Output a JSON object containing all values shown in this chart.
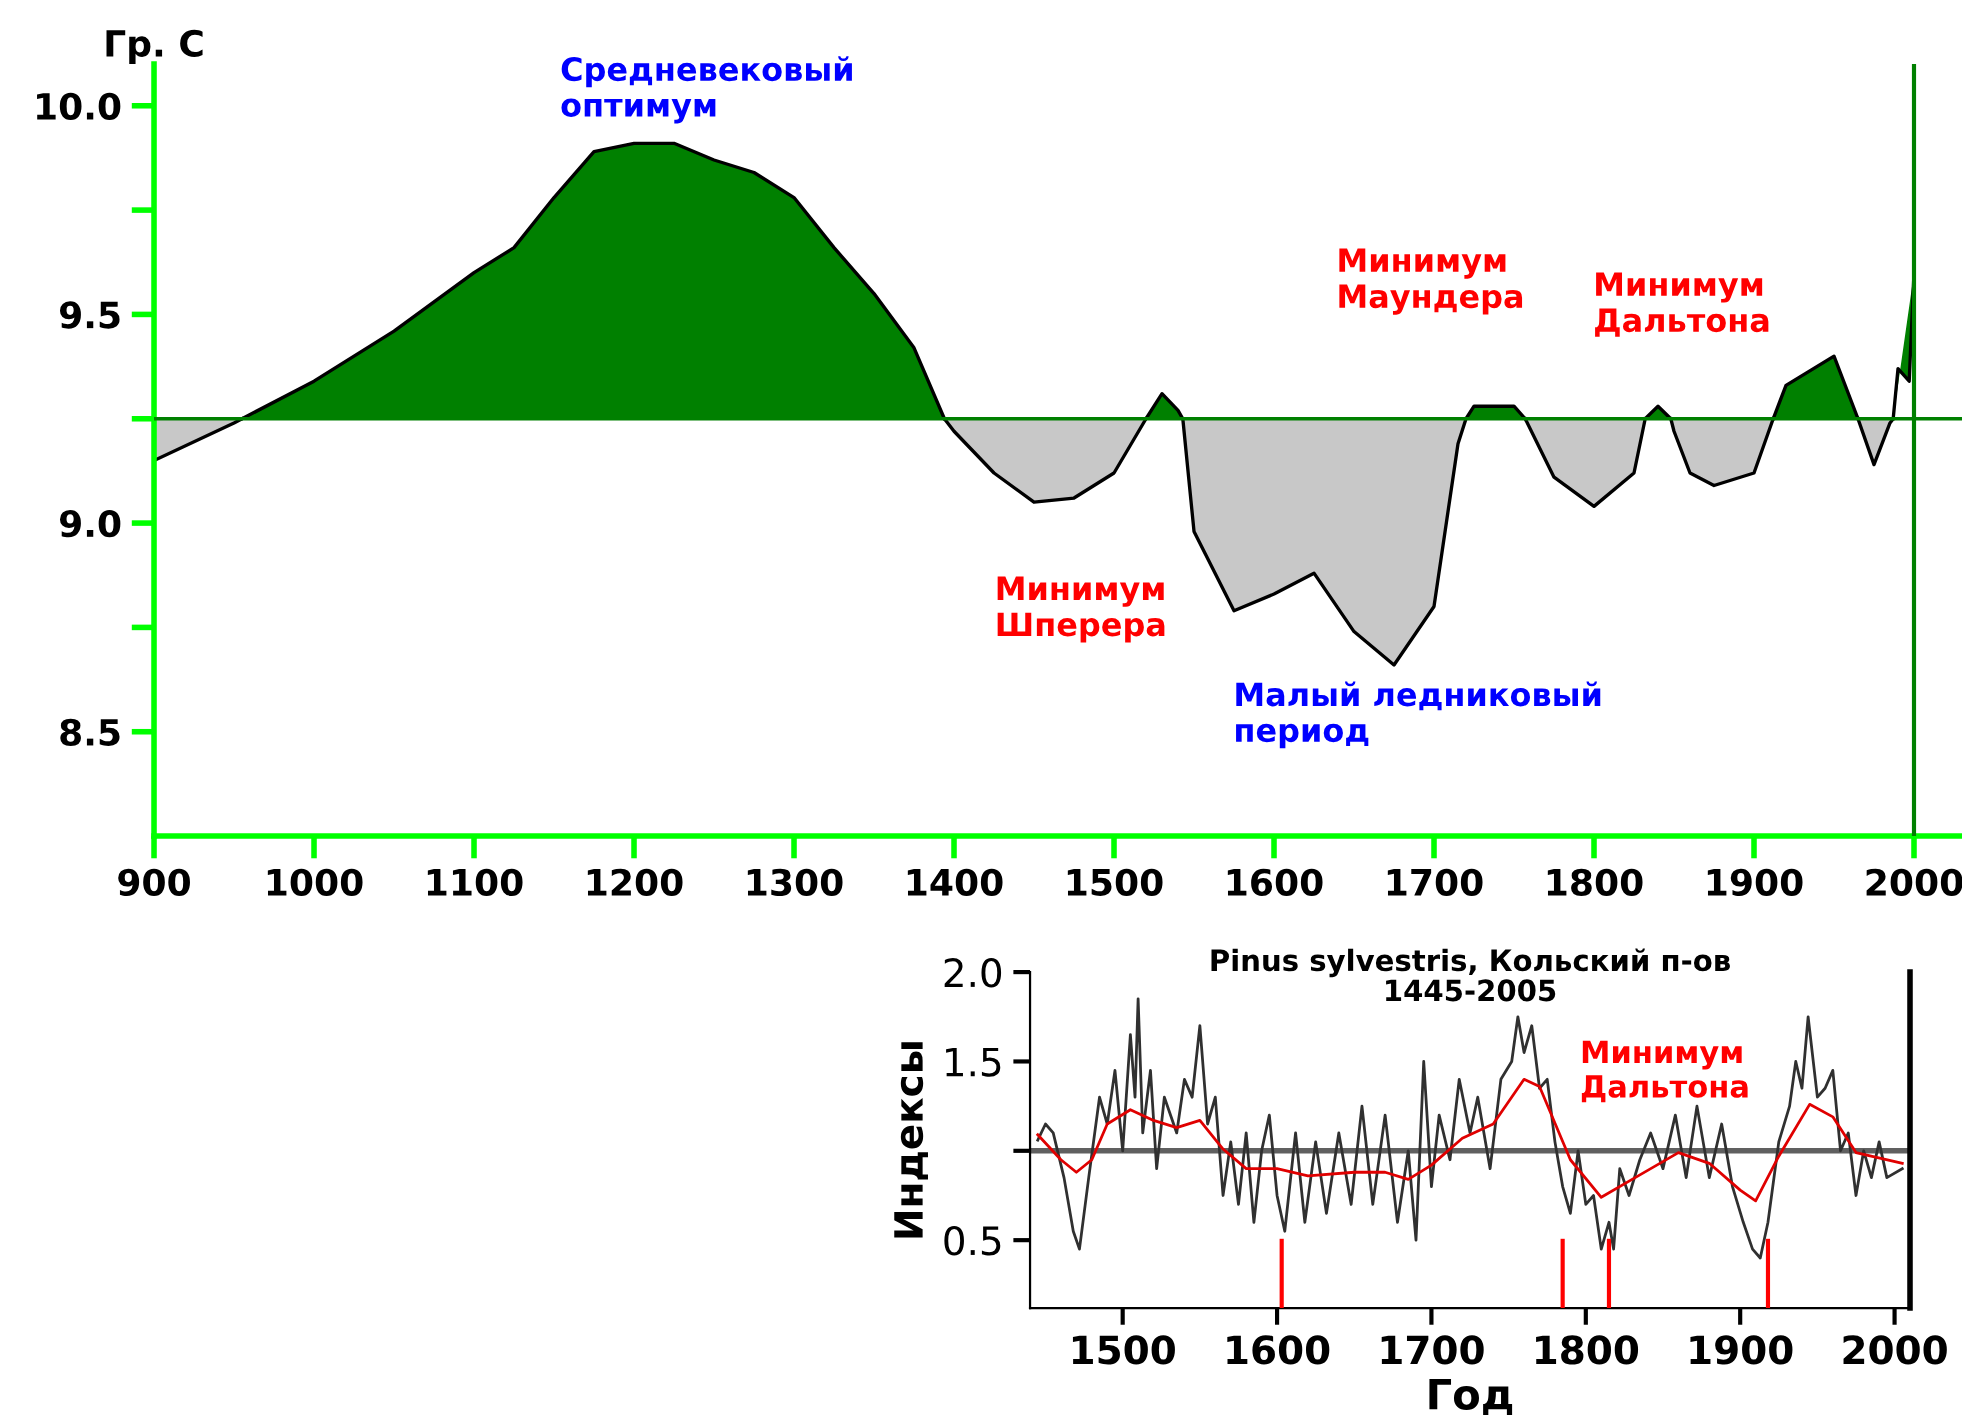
{
  "chart_data": [
    {
      "type": "area",
      "ylabel": "Гр. С",
      "x": [
        900,
        900,
        950,
        955,
        1000,
        1050,
        1100,
        1125,
        1150,
        1175,
        1200,
        1225,
        1250,
        1275,
        1300,
        1325,
        1350,
        1375,
        1394,
        1400,
        1425,
        1450,
        1475,
        1500,
        1520,
        1525,
        1530,
        1540,
        1543,
        1550,
        1575,
        1600,
        1625,
        1650,
        1675,
        1700,
        1715,
        1720,
        1725,
        1750,
        1757,
        1775,
        1800,
        1825,
        1832,
        1840,
        1848,
        1850,
        1860,
        1875,
        1900,
        1912,
        1920,
        1950,
        1965,
        1975,
        1985,
        1987,
        1990,
        1997,
        2000
      ],
      "series": [
        {
          "color": "#008000",
          "values": [
            null,
            null,
            null,
            9.25,
            9.34,
            9.46,
            9.6,
            9.66,
            9.78,
            9.89,
            9.91,
            9.91,
            9.87,
            9.84,
            9.78,
            9.66,
            9.55,
            9.42,
            9.25,
            null,
            null,
            null,
            null,
            null,
            9.25,
            9.28,
            9.31,
            9.27,
            9.25,
            null,
            null,
            null,
            null,
            null,
            null,
            null,
            null,
            9.25,
            9.28,
            9.28,
            9.25,
            null,
            null,
            null,
            9.25,
            9.28,
            9.25,
            null,
            null,
            null,
            null,
            9.25,
            9.33,
            9.4,
            9.25,
            null,
            null,
            9.25,
            9.37,
            9.34,
            9.6
          ]
        },
        {
          "color": "#c8c8c8",
          "values": [
            9.25,
            9.15,
            9.24,
            9.25,
            null,
            null,
            null,
            null,
            null,
            null,
            null,
            null,
            null,
            null,
            null,
            null,
            null,
            null,
            9.25,
            9.22,
            9.12,
            9.05,
            9.06,
            9.12,
            9.25,
            null,
            null,
            null,
            9.25,
            8.98,
            8.79,
            8.83,
            8.88,
            8.74,
            8.66,
            8.8,
            9.19,
            9.25,
            null,
            null,
            9.25,
            9.11,
            9.04,
            9.12,
            9.25,
            null,
            9.25,
            9.22,
            9.12,
            9.09,
            9.12,
            9.25,
            null,
            null,
            9.25,
            9.14,
            9.24,
            9.25,
            null,
            null,
            null
          ]
        }
      ],
      "xlim": [
        900,
        2030
      ],
      "ylim": [
        8.25,
        10.1
      ],
      "xticks": [
        900,
        1000,
        1100,
        1200,
        1300,
        1400,
        1500,
        1600,
        1700,
        1800,
        1900,
        2000
      ],
      "yticks": [
        8.5,
        {
          "value": 8.75,
          "label": null
        },
        {
          "value": 9.0,
          "label": "9.0"
        },
        {
          "value": 9.25,
          "label": null
        },
        9.5,
        {
          "value": 9.75,
          "label": null
        },
        {
          "value": 10.0,
          "label": "10.0"
        }
      ],
      "ref_lines": [
        {
          "axis": "y",
          "value": 9.25,
          "color": "#008000"
        },
        {
          "axis": "x",
          "value": 2000,
          "color": "#008000"
        }
      ],
      "annotations": [
        "Средневековый\nоптимум",
        "Минимум\nМаундера",
        "Минимум\nДальтона",
        "Минимум\nШперера",
        "Малый ледниковый\nпериод"
      ],
      "grid": false
    },
    {
      "type": "line",
      "title": "Pinus sylvestris, Кольский п-ов",
      "subtitle": "1445-2005",
      "xlabel": "Год",
      "ylabel": "Индексы",
      "series": [
        {
          "color": "#303030",
          "x": [
            1445,
            1450,
            1455,
            1462,
            1468,
            1472,
            1478,
            1485,
            1490,
            1495,
            1500,
            1505,
            1508,
            1510,
            1513,
            1518,
            1522,
            1527,
            1535,
            1540,
            1545,
            1550,
            1555,
            1560,
            1565,
            1570,
            1575,
            1580,
            1585,
            1590,
            1595,
            1600,
            1605,
            1612,
            1618,
            1625,
            1632,
            1640,
            1648,
            1655,
            1662,
            1670,
            1678,
            1685,
            1690,
            1695,
            1700,
            1705,
            1712,
            1718,
            1725,
            1730,
            1738,
            1745,
            1752,
            1756,
            1760,
            1765,
            1770,
            1775,
            1780,
            1785,
            1790,
            1795,
            1800,
            1805,
            1810,
            1815,
            1818,
            1822,
            1828,
            1835,
            1842,
            1850,
            1858,
            1865,
            1872,
            1880,
            1888,
            1895,
            1902,
            1908,
            1913,
            1918,
            1925,
            1932,
            1936,
            1940,
            1944,
            1950,
            1955,
            1960,
            1965,
            1970,
            1975,
            1980,
            1985,
            1990,
            1995,
            2005
          ],
          "values": [
            1.06,
            1.15,
            1.1,
            0.85,
            0.55,
            0.45,
            0.85,
            1.3,
            1.15,
            1.45,
            1.0,
            1.65,
            1.3,
            1.85,
            1.1,
            1.45,
            0.9,
            1.3,
            1.1,
            1.4,
            1.3,
            1.7,
            1.15,
            1.3,
            0.75,
            1.05,
            0.7,
            1.1,
            0.6,
            1.0,
            1.2,
            0.75,
            0.55,
            1.1,
            0.6,
            1.05,
            0.65,
            1.1,
            0.7,
            1.25,
            0.7,
            1.2,
            0.6,
            1.0,
            0.5,
            1.5,
            0.8,
            1.2,
            0.95,
            1.4,
            1.1,
            1.3,
            0.9,
            1.4,
            1.5,
            1.75,
            1.55,
            1.7,
            1.35,
            1.4,
            1.05,
            0.8,
            0.65,
            1.0,
            0.7,
            0.75,
            0.45,
            0.6,
            0.45,
            0.9,
            0.75,
            0.95,
            1.1,
            0.9,
            1.2,
            0.85,
            1.25,
            0.85,
            1.15,
            0.8,
            0.6,
            0.45,
            0.4,
            0.6,
            1.05,
            1.25,
            1.5,
            1.35,
            1.75,
            1.3,
            1.35,
            1.45,
            1.0,
            1.1,
            0.75,
            1.0,
            0.85,
            1.05,
            0.85,
            0.9
          ]
        },
        {
          "color": "#e00000",
          "x": [
            1445,
            1460,
            1470,
            1480,
            1490,
            1505,
            1520,
            1535,
            1550,
            1565,
            1580,
            1600,
            1620,
            1650,
            1670,
            1685,
            1700,
            1720,
            1740,
            1760,
            1770,
            1790,
            1810,
            1830,
            1860,
            1880,
            1900,
            1910,
            1925,
            1945,
            1960,
            1975,
            2005
          ],
          "values": [
            1.09,
            0.95,
            0.88,
            0.95,
            1.15,
            1.23,
            1.17,
            1.13,
            1.17,
            1.01,
            0.9,
            0.9,
            0.86,
            0.88,
            0.88,
            0.84,
            0.92,
            1.07,
            1.15,
            1.4,
            1.36,
            0.95,
            0.74,
            0.84,
            0.99,
            0.93,
            0.78,
            0.72,
            0.97,
            1.26,
            1.19,
            0.99,
            0.93
          ]
        }
      ],
      "xlim": [
        1440,
        2010
      ],
      "ylim": [
        0.12,
        2.0
      ],
      "xticks": [
        1500,
        1600,
        1700,
        1800,
        1900,
        2000
      ],
      "yticks": [
        0.5,
        {
          "value": 1.0,
          "label": null
        },
        1.5,
        {
          "value": 2.0,
          "label": "2.0"
        }
      ],
      "ref_lines": [
        {
          "axis": "y",
          "value": 1.0,
          "color": "#606060"
        },
        {
          "axis": "x",
          "value": 1603,
          "color": "#ff0000"
        },
        {
          "axis": "x",
          "value": 1785,
          "color": "#ff0000"
        },
        {
          "axis": "x",
          "value": 1815,
          "color": "#ff0000"
        },
        {
          "axis": "x",
          "value": 1918,
          "color": "#ff0000"
        }
      ],
      "annotations": [
        "Минимум\nДальтона"
      ],
      "grid": false
    }
  ]
}
